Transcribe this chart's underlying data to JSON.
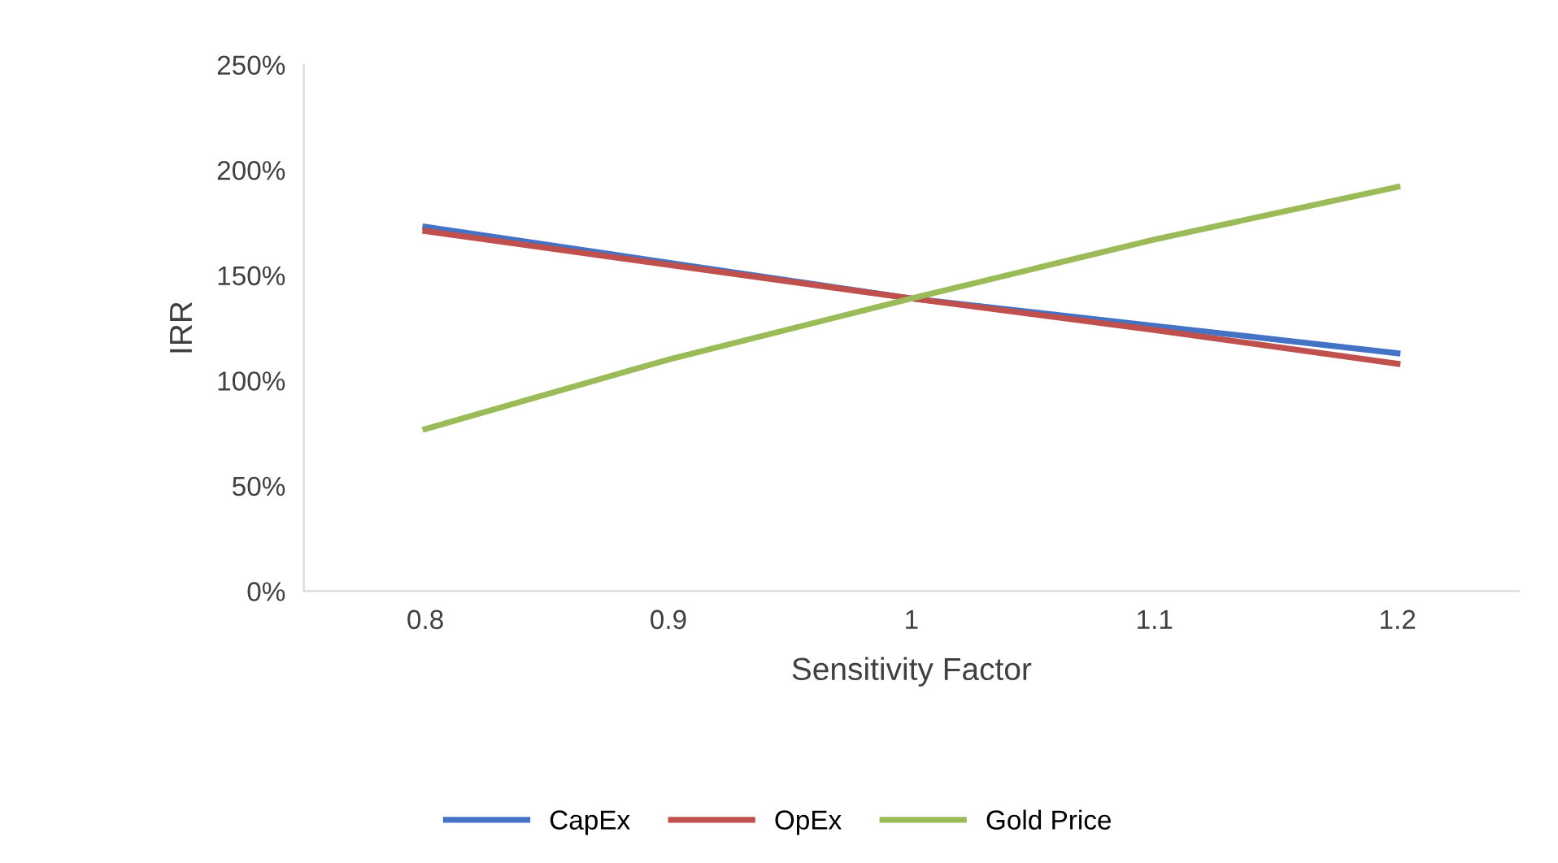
{
  "chart_data": {
    "type": "line",
    "xlabel": "Sensitivity Factor",
    "ylabel": "IRR",
    "categories": [
      "0.8",
      "0.9",
      "1",
      "1.1",
      "1.2"
    ],
    "series": [
      {
        "name": "CapEx",
        "color": "#4472c4",
        "values": [
          173,
          156,
          139,
          126,
          113
        ]
      },
      {
        "name": "OpEx",
        "color": "#c0504d",
        "values": [
          171,
          155,
          139,
          124,
          108
        ]
      },
      {
        "name": "Gold Price",
        "color": "#9bbb59",
        "values": [
          77,
          110,
          139,
          167,
          192
        ]
      }
    ],
    "ylim": [
      0,
      250
    ],
    "yticks": [
      {
        "value": 0,
        "label": "0%"
      },
      {
        "value": 50,
        "label": "50%"
      },
      {
        "value": 100,
        "label": "100%"
      },
      {
        "value": 150,
        "label": "150%"
      },
      {
        "value": 200,
        "label": "200%"
      },
      {
        "value": 250,
        "label": "250%"
      }
    ],
    "grid": false,
    "legend": "bottom",
    "marker": "none",
    "line_style": "solid"
  }
}
